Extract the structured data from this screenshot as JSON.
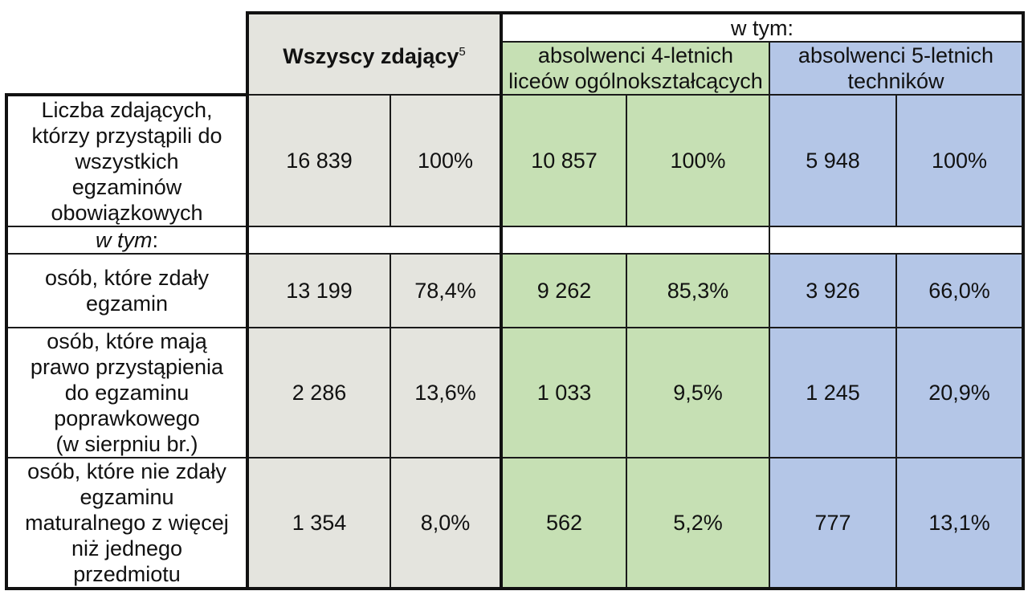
{
  "header": {
    "all_label": "Wszyscy zdający",
    "all_footnote": "5",
    "wtym": "w tym:",
    "group4_line1": "absolwenci 4-letnich",
    "group4_line2": "liceów ogólnokształcących",
    "group5_line1": "absolwenci 5-letnich",
    "group5_line2": "techników"
  },
  "rows": [
    {
      "label": [
        "Liczba zdających,",
        "którzy przystąpili do",
        "wszystkich",
        "egzaminów",
        "obowiązkowych"
      ],
      "all_n": "16 839",
      "all_p": "100%",
      "g4_n": "10 857",
      "g4_p": "100%",
      "g5_n": "5 948",
      "g5_p": "100%"
    },
    {
      "label": [
        "osób, które zdały",
        "egzamin"
      ],
      "all_n": "13 199",
      "all_p": "78,4%",
      "g4_n": "9 262",
      "g4_p": "85,3%",
      "g5_n": "3 926",
      "g5_p": "66,0%"
    },
    {
      "label": [
        "osób, które mają",
        "prawo przystąpienia",
        "do egzaminu",
        "poprawkowego",
        "(w sierpniu br.)"
      ],
      "all_n": "2 286",
      "all_p": "13,6%",
      "g4_n": "1 033",
      "g4_p": "9,5%",
      "g5_n": "1 245",
      "g5_p": "20,9%"
    },
    {
      "label": [
        "osób, które nie zdały",
        "egzaminu",
        "maturalnego z więcej",
        "niż jednego",
        "przedmiotu"
      ],
      "all_n": "1 354",
      "all_p": "8,0%",
      "g4_n": "562",
      "g4_p": "5,2%",
      "g5_n": "777",
      "g5_p": "13,1%"
    }
  ],
  "wtym_row_label": "w tym",
  "wtym_row_suffix": ":"
}
